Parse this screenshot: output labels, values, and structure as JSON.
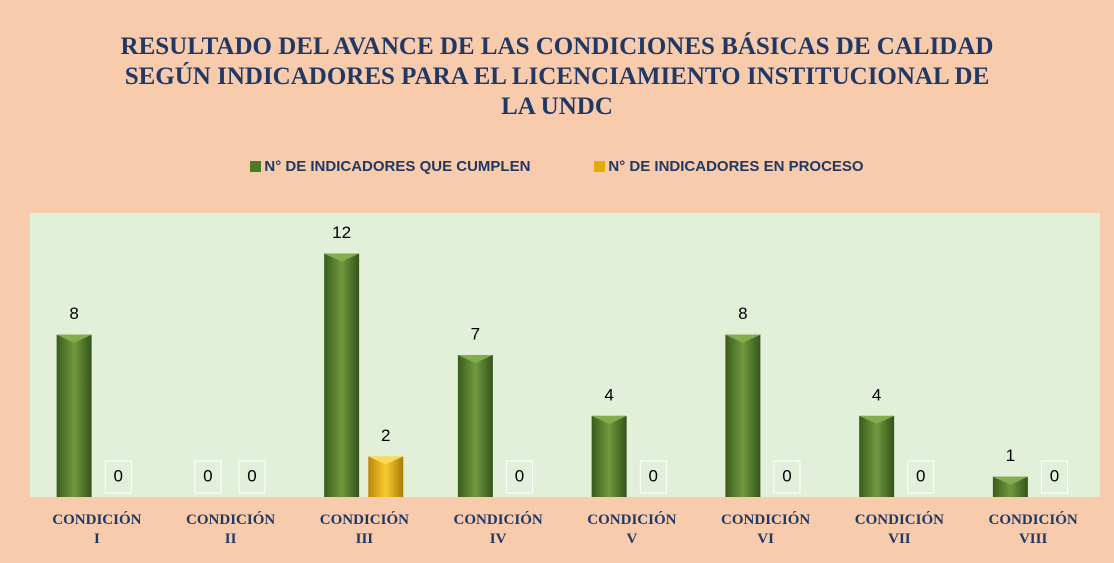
{
  "chart_data": {
    "type": "bar",
    "title": "RESULTADO DEL AVANCE DE LAS CONDICIONES BÁSICAS DE CALIDAD SEGÚN INDICADORES PARA EL LICENCIAMIENTO INSTITUCIONAL DE LA UNDC",
    "categories": [
      "CONDICIÓN I",
      "CONDICIÓN II",
      "CONDICIÓN III",
      "CONDICIÓN IV",
      "CONDICIÓN V",
      "CONDICIÓN VI",
      "CONDICIÓN VII",
      "CONDICIÓN VIII"
    ],
    "series": [
      {
        "name": "N° DE INDICADORES QUE CUMPLEN",
        "color": "#4f7a28",
        "values": [
          8,
          0,
          12,
          7,
          4,
          8,
          4,
          1
        ]
      },
      {
        "name": "N° DE INDICADORES EN PROCESO",
        "color": "#e0ac0a",
        "values": [
          0,
          0,
          2,
          0,
          0,
          0,
          0,
          0
        ]
      }
    ],
    "ylim": [
      0,
      14
    ],
    "legend": "top"
  }
}
